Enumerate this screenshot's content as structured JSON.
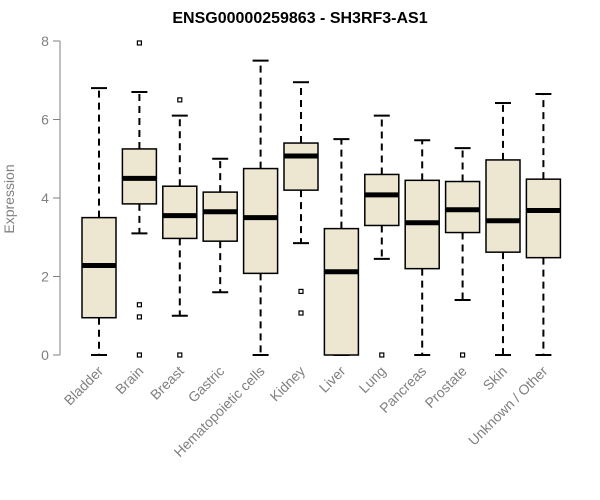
{
  "chart_data": {
    "type": "box",
    "title": "ENSG00000259863 - SH3RF3-AS1",
    "xlabel": "",
    "ylabel": "Expression",
    "ylim": [
      0,
      8
    ],
    "yticks": [
      0,
      2,
      4,
      6,
      8
    ],
    "grid": false,
    "colors": {
      "box_fill": "#ede7d1",
      "stroke": "#000000",
      "axis": "#808080",
      "tick_text": "#808080"
    },
    "categories": [
      "Bladder",
      "Brain",
      "Breast",
      "Gastric",
      "Hematopoietic cells",
      "Kidney",
      "Liver",
      "Lung",
      "Pancreas",
      "Prostate",
      "Skin",
      "Unknown / Other"
    ],
    "boxes": [
      {
        "category": "Bladder",
        "whisker_low": 0.0,
        "q1": 0.95,
        "median": 2.28,
        "q3": 3.5,
        "whisker_high": 6.8,
        "outliers": []
      },
      {
        "category": "Brain",
        "whisker_low": 3.1,
        "q1": 3.85,
        "median": 4.5,
        "q3": 5.25,
        "whisker_high": 6.7,
        "outliers": [
          7.95,
          1.28,
          0.97,
          0.0
        ]
      },
      {
        "category": "Breast",
        "whisker_low": 1.0,
        "q1": 2.97,
        "median": 3.55,
        "q3": 4.3,
        "whisker_high": 6.1,
        "outliers": [
          6.5,
          0.0
        ]
      },
      {
        "category": "Gastric",
        "whisker_low": 1.6,
        "q1": 2.9,
        "median": 3.65,
        "q3": 4.15,
        "whisker_high": 5.0,
        "outliers": []
      },
      {
        "category": "Hematopoietic cells",
        "whisker_low": 0.0,
        "q1": 2.08,
        "median": 3.5,
        "q3": 4.75,
        "whisker_high": 7.5,
        "outliers": []
      },
      {
        "category": "Kidney",
        "whisker_low": 2.85,
        "q1": 4.2,
        "median": 5.07,
        "q3": 5.4,
        "whisker_high": 6.95,
        "outliers": [
          1.62,
          1.07
        ]
      },
      {
        "category": "Liver",
        "whisker_low": 0.0,
        "q1": 0.0,
        "median": 2.12,
        "q3": 3.22,
        "whisker_high": 5.5,
        "outliers": []
      },
      {
        "category": "Lung",
        "whisker_low": 2.45,
        "q1": 3.3,
        "median": 4.08,
        "q3": 4.6,
        "whisker_high": 6.1,
        "outliers": [
          0.0
        ]
      },
      {
        "category": "Pancreas",
        "whisker_low": 0.0,
        "q1": 2.2,
        "median": 3.37,
        "q3": 4.45,
        "whisker_high": 5.47,
        "outliers": []
      },
      {
        "category": "Prostate",
        "whisker_low": 1.4,
        "q1": 3.12,
        "median": 3.7,
        "q3": 4.42,
        "whisker_high": 5.27,
        "outliers": [
          0.0
        ]
      },
      {
        "category": "Skin",
        "whisker_low": 0.0,
        "q1": 2.62,
        "median": 3.42,
        "q3": 4.97,
        "whisker_high": 6.42,
        "outliers": []
      },
      {
        "category": "Unknown / Other",
        "whisker_low": 0.0,
        "q1": 2.48,
        "median": 3.68,
        "q3": 4.48,
        "whisker_high": 6.65,
        "outliers": []
      }
    ]
  }
}
